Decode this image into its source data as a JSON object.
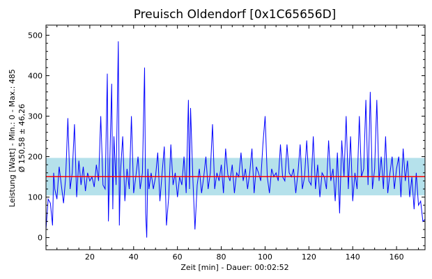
{
  "chart_data": {
    "type": "line",
    "title": "Preuisch Oldendorf [0x1C65656D]",
    "xlabel": "Zeit [min] - Dauer: 00:02:52",
    "ylabel_line1": "Leistung [Watt] - Min.: 0 - Max.: 485",
    "ylabel_line2": "Ø 150,58 ± 46,26",
    "xlim": [
      0,
      173
    ],
    "ylim": [
      -30,
      525
    ],
    "x_ticks": [
      20,
      40,
      60,
      80,
      100,
      120,
      140,
      160
    ],
    "y_ticks": [
      0,
      100,
      200,
      300,
      400,
      500
    ],
    "mean": 150.58,
    "std": 46.26,
    "min": 0,
    "max": 485,
    "colors": {
      "series": "#0000ff",
      "mean_line": "#ff0000",
      "std_band": "#a8dce8",
      "frame": "#000000"
    },
    "series": [
      {
        "values": [
          [
            0,
            20
          ],
          [
            1,
            95
          ],
          [
            2,
            85
          ],
          [
            3,
            30
          ],
          [
            3.5,
            160
          ],
          [
            4,
            120
          ],
          [
            5,
            95
          ],
          [
            6,
            175
          ],
          [
            7,
            130
          ],
          [
            8,
            85
          ],
          [
            9,
            150
          ],
          [
            10,
            295
          ],
          [
            11,
            120
          ],
          [
            12,
            160
          ],
          [
            13,
            280
          ],
          [
            14,
            100
          ],
          [
            15,
            190
          ],
          [
            16,
            130
          ],
          [
            17,
            175
          ],
          [
            18,
            115
          ],
          [
            19,
            160
          ],
          [
            20,
            140
          ],
          [
            21,
            150
          ],
          [
            22,
            125
          ],
          [
            23,
            180
          ],
          [
            24,
            140
          ],
          [
            25,
            300
          ],
          [
            26,
            130
          ],
          [
            27,
            120
          ],
          [
            28,
            405
          ],
          [
            28.5,
            40
          ],
          [
            29,
            160
          ],
          [
            30,
            380
          ],
          [
            30.5,
            70
          ],
          [
            31,
            250
          ],
          [
            32,
            130
          ],
          [
            33,
            485
          ],
          [
            33.5,
            30
          ],
          [
            34,
            160
          ],
          [
            35,
            250
          ],
          [
            36,
            90
          ],
          [
            37,
            170
          ],
          [
            38,
            120
          ],
          [
            39,
            300
          ],
          [
            40,
            110
          ],
          [
            41,
            150
          ],
          [
            42,
            200
          ],
          [
            43,
            120
          ],
          [
            44,
            160
          ],
          [
            45,
            420
          ],
          [
            45.5,
            60
          ],
          [
            46,
            0
          ],
          [
            46.5,
            170
          ],
          [
            47,
            120
          ],
          [
            48,
            160
          ],
          [
            49,
            120
          ],
          [
            50,
            150
          ],
          [
            51,
            210
          ],
          [
            52,
            90
          ],
          [
            53,
            160
          ],
          [
            54,
            225
          ],
          [
            55,
            30
          ],
          [
            56,
            100
          ],
          [
            57,
            230
          ],
          [
            58,
            130
          ],
          [
            59,
            160
          ],
          [
            60,
            100
          ],
          [
            61,
            150
          ],
          [
            62,
            130
          ],
          [
            63,
            200
          ],
          [
            64,
            110
          ],
          [
            65,
            340
          ],
          [
            65.5,
            120
          ],
          [
            66,
            320
          ],
          [
            67,
            150
          ],
          [
            68,
            20
          ],
          [
            69,
            130
          ],
          [
            70,
            170
          ],
          [
            71,
            110
          ],
          [
            72,
            150
          ],
          [
            73,
            200
          ],
          [
            74,
            120
          ],
          [
            75,
            160
          ],
          [
            76,
            280
          ],
          [
            77,
            120
          ],
          [
            78,
            160
          ],
          [
            79,
            140
          ],
          [
            80,
            180
          ],
          [
            81,
            110
          ],
          [
            82,
            220
          ],
          [
            83,
            155
          ],
          [
            84,
            140
          ],
          [
            85,
            180
          ],
          [
            86,
            110
          ],
          [
            87,
            160
          ],
          [
            88,
            150
          ],
          [
            89,
            210
          ],
          [
            90,
            140
          ],
          [
            91,
            170
          ],
          [
            92,
            120
          ],
          [
            93,
            160
          ],
          [
            94,
            220
          ],
          [
            95,
            110
          ],
          [
            96,
            175
          ],
          [
            97,
            160
          ],
          [
            98,
            140
          ],
          [
            99,
            230
          ],
          [
            100,
            300
          ],
          [
            101,
            150
          ],
          [
            102,
            110
          ],
          [
            103,
            170
          ],
          [
            104,
            150
          ],
          [
            105,
            160
          ],
          [
            106,
            140
          ],
          [
            107,
            230
          ],
          [
            108,
            150
          ],
          [
            109,
            140
          ],
          [
            110,
            230
          ],
          [
            111,
            160
          ],
          [
            112,
            150
          ],
          [
            113,
            170
          ],
          [
            114,
            110
          ],
          [
            115,
            160
          ],
          [
            116,
            230
          ],
          [
            117,
            120
          ],
          [
            118,
            150
          ],
          [
            119,
            240
          ],
          [
            120,
            140
          ],
          [
            121,
            130
          ],
          [
            122,
            250
          ],
          [
            123,
            120
          ],
          [
            124,
            180
          ],
          [
            125,
            100
          ],
          [
            126,
            160
          ],
          [
            127,
            150
          ],
          [
            128,
            120
          ],
          [
            129,
            240
          ],
          [
            130,
            140
          ],
          [
            131,
            170
          ],
          [
            132,
            90
          ],
          [
            133,
            210
          ],
          [
            134,
            60
          ],
          [
            135,
            240
          ],
          [
            136,
            150
          ],
          [
            137,
            300
          ],
          [
            138,
            120
          ],
          [
            139,
            250
          ],
          [
            140,
            90
          ],
          [
            141,
            160
          ],
          [
            142,
            120
          ],
          [
            143,
            300
          ],
          [
            144,
            150
          ],
          [
            145,
            170
          ],
          [
            146,
            340
          ],
          [
            147,
            130
          ],
          [
            148,
            360
          ],
          [
            149,
            120
          ],
          [
            150,
            170
          ],
          [
            151,
            340
          ],
          [
            152,
            140
          ],
          [
            153,
            200
          ],
          [
            154,
            120
          ],
          [
            155,
            250
          ],
          [
            156,
            110
          ],
          [
            157,
            160
          ],
          [
            158,
            200
          ],
          [
            159,
            120
          ],
          [
            160,
            170
          ],
          [
            161,
            200
          ],
          [
            162,
            100
          ],
          [
            163,
            220
          ],
          [
            164,
            140
          ],
          [
            165,
            190
          ],
          [
            166,
            100
          ],
          [
            167,
            150
          ],
          [
            168,
            70
          ],
          [
            169,
            160
          ],
          [
            170,
            80
          ],
          [
            171,
            90
          ],
          [
            172,
            40
          ],
          [
            173,
            45
          ]
        ]
      }
    ]
  }
}
